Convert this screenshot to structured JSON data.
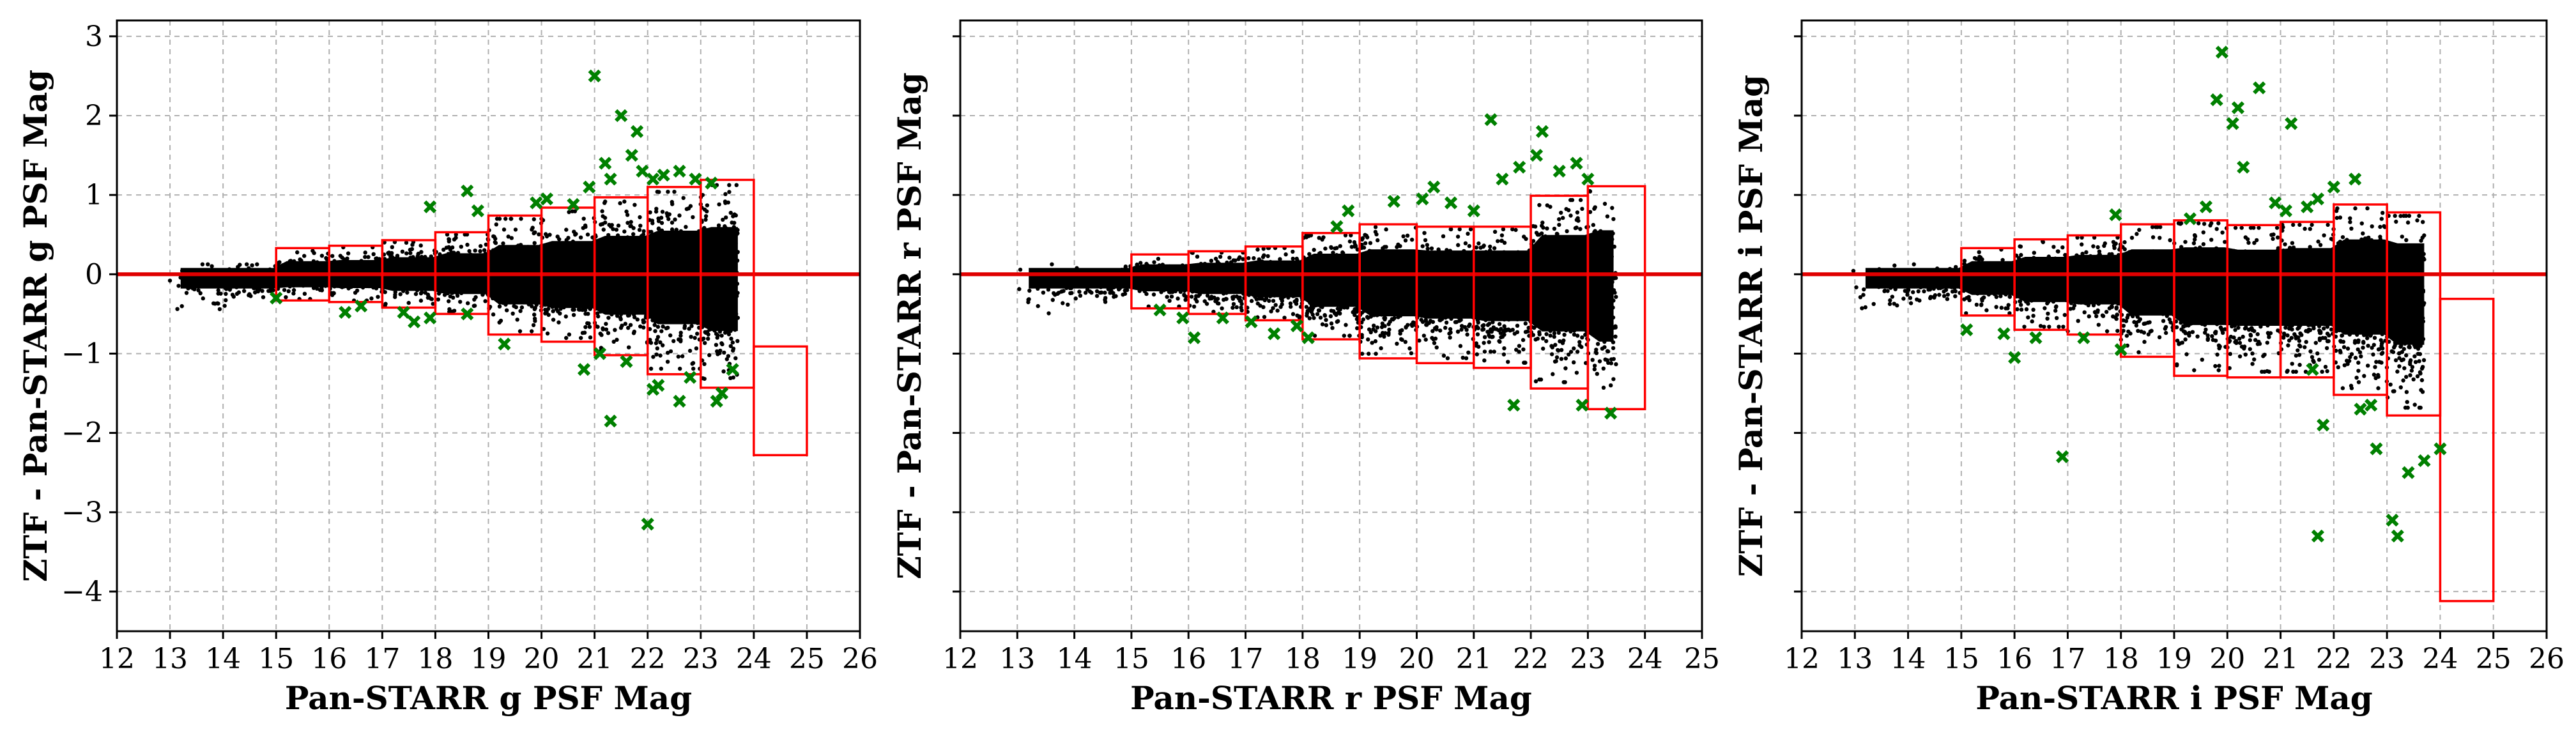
{
  "chart_data": [
    {
      "type": "scatter",
      "panel": "g",
      "xlabel": "Pan-STARR g PSF Mag",
      "ylabel": "ZTF - Pan-STARR g PSF Mag",
      "xlim": [
        12,
        26
      ],
      "ylim": [
        -4.5,
        3.2
      ],
      "xticks": [
        12,
        13,
        14,
        15,
        16,
        17,
        18,
        19,
        20,
        21,
        22,
        23,
        24,
        25,
        26
      ],
      "yticks": [
        -4,
        -3,
        -2,
        -1,
        0,
        1,
        2,
        3
      ],
      "ytick_labels_visible": true,
      "grid": true,
      "reference_line": 0,
      "bins": [
        {
          "x0": 15,
          "x1": 16,
          "low": -0.33,
          "high": 0.33
        },
        {
          "x0": 16,
          "x1": 17,
          "low": -0.35,
          "high": 0.36
        },
        {
          "x0": 17,
          "x1": 18,
          "low": -0.42,
          "high": 0.43
        },
        {
          "x0": 18,
          "x1": 19,
          "low": -0.5,
          "high": 0.53
        },
        {
          "x0": 19,
          "x1": 20,
          "low": -0.76,
          "high": 0.74
        },
        {
          "x0": 20,
          "x1": 21,
          "low": -0.85,
          "high": 0.84
        },
        {
          "x0": 21,
          "x1": 22,
          "low": -1.02,
          "high": 0.97
        },
        {
          "x0": 22,
          "x1": 23,
          "low": -1.26,
          "high": 1.1
        },
        {
          "x0": 23,
          "x1": 24,
          "low": -1.43,
          "high": 1.19
        },
        {
          "x0": 24,
          "x1": 25,
          "low": -2.28,
          "high": -0.91
        }
      ],
      "outliers": [
        [
          15.0,
          -0.3
        ],
        [
          16.3,
          -0.48
        ],
        [
          16.6,
          -0.4
        ],
        [
          17.4,
          -0.48
        ],
        [
          17.6,
          -0.6
        ],
        [
          17.9,
          -0.55
        ],
        [
          17.9,
          0.85
        ],
        [
          18.6,
          1.05
        ],
        [
          18.8,
          0.8
        ],
        [
          18.6,
          -0.5
        ],
        [
          19.3,
          -0.88
        ],
        [
          19.9,
          0.9
        ],
        [
          20.1,
          0.95
        ],
        [
          20.6,
          0.88
        ],
        [
          20.9,
          1.1
        ],
        [
          21.0,
          2.5
        ],
        [
          21.2,
          1.4
        ],
        [
          21.3,
          1.2
        ],
        [
          21.5,
          2.0
        ],
        [
          21.7,
          1.5
        ],
        [
          21.8,
          1.8
        ],
        [
          21.9,
          1.3
        ],
        [
          22.1,
          1.2
        ],
        [
          22.3,
          1.25
        ],
        [
          22.6,
          1.3
        ],
        [
          22.9,
          1.2
        ],
        [
          23.2,
          1.15
        ],
        [
          20.8,
          -1.2
        ],
        [
          21.1,
          -1.0
        ],
        [
          21.3,
          -1.85
        ],
        [
          21.6,
          -1.1
        ],
        [
          22.0,
          -3.15
        ],
        [
          22.1,
          -1.45
        ],
        [
          22.2,
          -1.4
        ],
        [
          22.6,
          -1.6
        ],
        [
          22.8,
          -1.3
        ],
        [
          23.3,
          -1.6
        ],
        [
          23.4,
          -1.5
        ],
        [
          23.6,
          -1.2
        ]
      ],
      "scatter_points_drawn_as": "dense black point cloud"
    },
    {
      "type": "scatter",
      "panel": "r",
      "xlabel": "Pan-STARR r PSF Mag",
      "ylabel": "ZTF - Pan-STARR r PSF Mag",
      "xlim": [
        12,
        25
      ],
      "ylim": [
        -4.5,
        3.2
      ],
      "xticks": [
        12,
        13,
        14,
        15,
        16,
        17,
        18,
        19,
        20,
        21,
        22,
        23,
        24,
        25
      ],
      "yticks": [
        -4,
        -3,
        -2,
        -1,
        0,
        1,
        2,
        3
      ],
      "ytick_labels_visible": false,
      "grid": true,
      "reference_line": 0,
      "bins": [
        {
          "x0": 15,
          "x1": 16,
          "low": -0.43,
          "high": 0.25
        },
        {
          "x0": 16,
          "x1": 17,
          "low": -0.5,
          "high": 0.29
        },
        {
          "x0": 17,
          "x1": 18,
          "low": -0.58,
          "high": 0.35
        },
        {
          "x0": 18,
          "x1": 19,
          "low": -0.82,
          "high": 0.52
        },
        {
          "x0": 19,
          "x1": 20,
          "low": -1.06,
          "high": 0.63
        },
        {
          "x0": 20,
          "x1": 21,
          "low": -1.12,
          "high": 0.6
        },
        {
          "x0": 21,
          "x1": 22,
          "low": -1.18,
          "high": 0.6
        },
        {
          "x0": 22,
          "x1": 23,
          "low": -1.44,
          "high": 0.99
        },
        {
          "x0": 23,
          "x1": 24,
          "low": -1.7,
          "high": 1.11
        }
      ],
      "outliers": [
        [
          15.5,
          -0.45
        ],
        [
          15.9,
          -0.55
        ],
        [
          16.1,
          -0.8
        ],
        [
          16.6,
          -0.55
        ],
        [
          17.1,
          -0.6
        ],
        [
          17.5,
          -0.75
        ],
        [
          17.9,
          -0.65
        ],
        [
          18.1,
          -0.8
        ],
        [
          18.6,
          0.6
        ],
        [
          18.8,
          0.8
        ],
        [
          19.6,
          0.92
        ],
        [
          20.1,
          0.95
        ],
        [
          20.3,
          1.1
        ],
        [
          20.6,
          0.9
        ],
        [
          21.0,
          0.8
        ],
        [
          21.3,
          1.95
        ],
        [
          21.5,
          1.2
        ],
        [
          21.8,
          1.35
        ],
        [
          22.1,
          1.5
        ],
        [
          22.2,
          1.8
        ],
        [
          22.5,
          1.3
        ],
        [
          22.8,
          1.4
        ],
        [
          23.0,
          1.2
        ],
        [
          21.7,
          -1.65
        ],
        [
          22.9,
          -1.65
        ],
        [
          23.4,
          -1.75
        ]
      ],
      "scatter_points_drawn_as": "dense black point cloud"
    },
    {
      "type": "scatter",
      "panel": "i",
      "xlabel": "Pan-STARR i PSF Mag",
      "ylabel": "ZTF - Pan-STARR i PSF Mag",
      "xlim": [
        12,
        26
      ],
      "ylim": [
        -4.5,
        3.2
      ],
      "xticks": [
        12,
        13,
        14,
        15,
        16,
        17,
        18,
        19,
        20,
        21,
        22,
        23,
        24,
        25,
        26
      ],
      "yticks": [
        -4,
        -3,
        -2,
        -1,
        0,
        1,
        2,
        3
      ],
      "ytick_labels_visible": false,
      "grid": true,
      "reference_line": 0,
      "bins": [
        {
          "x0": 15,
          "x1": 16,
          "low": -0.52,
          "high": 0.33
        },
        {
          "x0": 16,
          "x1": 17,
          "low": -0.7,
          "high": 0.44
        },
        {
          "x0": 17,
          "x1": 18,
          "low": -0.76,
          "high": 0.49
        },
        {
          "x0": 18,
          "x1": 19,
          "low": -1.04,
          "high": 0.63
        },
        {
          "x0": 19,
          "x1": 20,
          "low": -1.28,
          "high": 0.68
        },
        {
          "x0": 20,
          "x1": 21,
          "low": -1.3,
          "high": 0.62
        },
        {
          "x0": 21,
          "x1": 22,
          "low": -1.3,
          "high": 0.66
        },
        {
          "x0": 22,
          "x1": 23,
          "low": -1.52,
          "high": 0.88
        },
        {
          "x0": 23,
          "x1": 24,
          "low": -1.78,
          "high": 0.78
        },
        {
          "x0": 24,
          "x1": 25,
          "low": -4.12,
          "high": -0.31
        }
      ],
      "outliers": [
        [
          15.1,
          -0.7
        ],
        [
          15.8,
          -0.75
        ],
        [
          16.0,
          -1.05
        ],
        [
          16.4,
          -0.8
        ],
        [
          16.9,
          -2.3
        ],
        [
          17.3,
          -0.8
        ],
        [
          17.9,
          0.75
        ],
        [
          18.0,
          -0.95
        ],
        [
          19.3,
          0.7
        ],
        [
          19.6,
          0.85
        ],
        [
          19.9,
          2.8
        ],
        [
          19.8,
          2.2
        ],
        [
          20.2,
          2.1
        ],
        [
          20.1,
          1.9
        ],
        [
          20.3,
          1.35
        ],
        [
          20.6,
          2.35
        ],
        [
          20.9,
          0.9
        ],
        [
          21.1,
          0.8
        ],
        [
          21.2,
          1.9
        ],
        [
          21.5,
          0.85
        ],
        [
          21.7,
          0.95
        ],
        [
          22.0,
          1.1
        ],
        [
          22.4,
          1.2
        ],
        [
          21.6,
          -1.2
        ],
        [
          21.8,
          -1.9
        ],
        [
          21.7,
          -3.3
        ],
        [
          22.5,
          -1.7
        ],
        [
          22.7,
          -1.65
        ],
        [
          22.8,
          -2.2
        ],
        [
          23.1,
          -3.1
        ],
        [
          23.2,
          -3.3
        ],
        [
          23.4,
          -2.5
        ],
        [
          23.7,
          -2.35
        ],
        [
          24.0,
          -2.2
        ]
      ],
      "scatter_points_drawn_as": "dense black point cloud"
    }
  ],
  "colors": {
    "bin_box": "#ff0000",
    "zero_line": "#e00000",
    "outlier_marker": "#008000",
    "points": "#000000",
    "grid": "#b0b0b0"
  }
}
